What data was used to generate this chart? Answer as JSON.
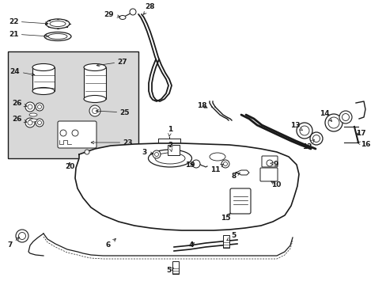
{
  "bg_color": "#ffffff",
  "line_color": "#1a1a1a",
  "inset_bg": "#d8d8d8",
  "label_fontsize": 6.5,
  "lw": 0.9
}
